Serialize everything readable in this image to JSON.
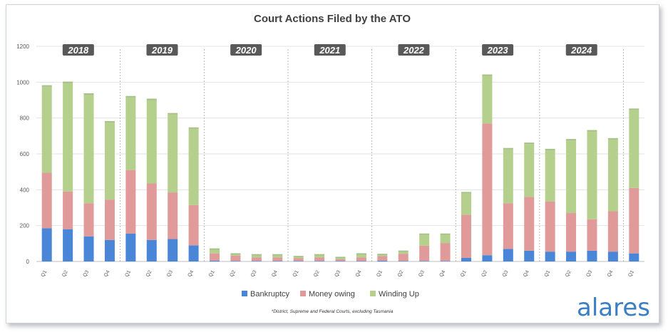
{
  "chart_data": {
    "type": "bar",
    "stacked": true,
    "title": "Court Actions Filed by the ATO",
    "ylim": [
      0,
      1200
    ],
    "yticks": [
      0,
      200,
      400,
      600,
      800,
      1000,
      1200
    ],
    "grid": true,
    "legend_position": "bottom",
    "categories": [
      "Q1",
      "Q2",
      "Q3",
      "Q4",
      "Q1",
      "Q2",
      "Q3",
      "Q4",
      "Q1",
      "Q2",
      "Q3",
      "Q4",
      "Q1",
      "Q2",
      "Q3",
      "Q4",
      "Q1",
      "Q2",
      "Q3",
      "Q4",
      "Q1",
      "Q2",
      "Q3",
      "Q4",
      "Q1",
      "Q2",
      "Q3",
      "Q4",
      "Q1"
    ],
    "year_groups": [
      {
        "label": "2018",
        "start": 0,
        "count": 4
      },
      {
        "label": "2019",
        "start": 4,
        "count": 4
      },
      {
        "label": "2020",
        "start": 8,
        "count": 4
      },
      {
        "label": "2021",
        "start": 12,
        "count": 4
      },
      {
        "label": "2022",
        "start": 16,
        "count": 4
      },
      {
        "label": "2023",
        "start": 20,
        "count": 4
      },
      {
        "label": "2024",
        "start": 24,
        "count": 4
      }
    ],
    "series": [
      {
        "name": "Bankruptcy",
        "color": "#4a86d8",
        "values": [
          185,
          180,
          140,
          120,
          155,
          120,
          125,
          90,
          5,
          3,
          3,
          3,
          3,
          3,
          3,
          3,
          5,
          3,
          3,
          3,
          20,
          35,
          70,
          60,
          55,
          55,
          60,
          55,
          45
        ]
      },
      {
        "name": "Money owing",
        "color": "#e09a9a",
        "values": [
          310,
          210,
          185,
          225,
          355,
          315,
          260,
          225,
          40,
          30,
          20,
          20,
          15,
          20,
          10,
          20,
          25,
          40,
          85,
          100,
          240,
          735,
          255,
          300,
          280,
          215,
          175,
          225,
          365
        ]
      },
      {
        "name": "Winding Up",
        "color": "#b4d08c",
        "values": [
          480,
          605,
          605,
          430,
          405,
          465,
          435,
          425,
          20,
          5,
          10,
          10,
          5,
          10,
          5,
          15,
          5,
          10,
          60,
          45,
          120,
          265,
          300,
          295,
          285,
          405,
          490,
          400,
          435
        ]
      }
    ]
  },
  "footnote": "*District, Supreme and Federal Courts, excluding Tasmania",
  "logo_text": "alares"
}
